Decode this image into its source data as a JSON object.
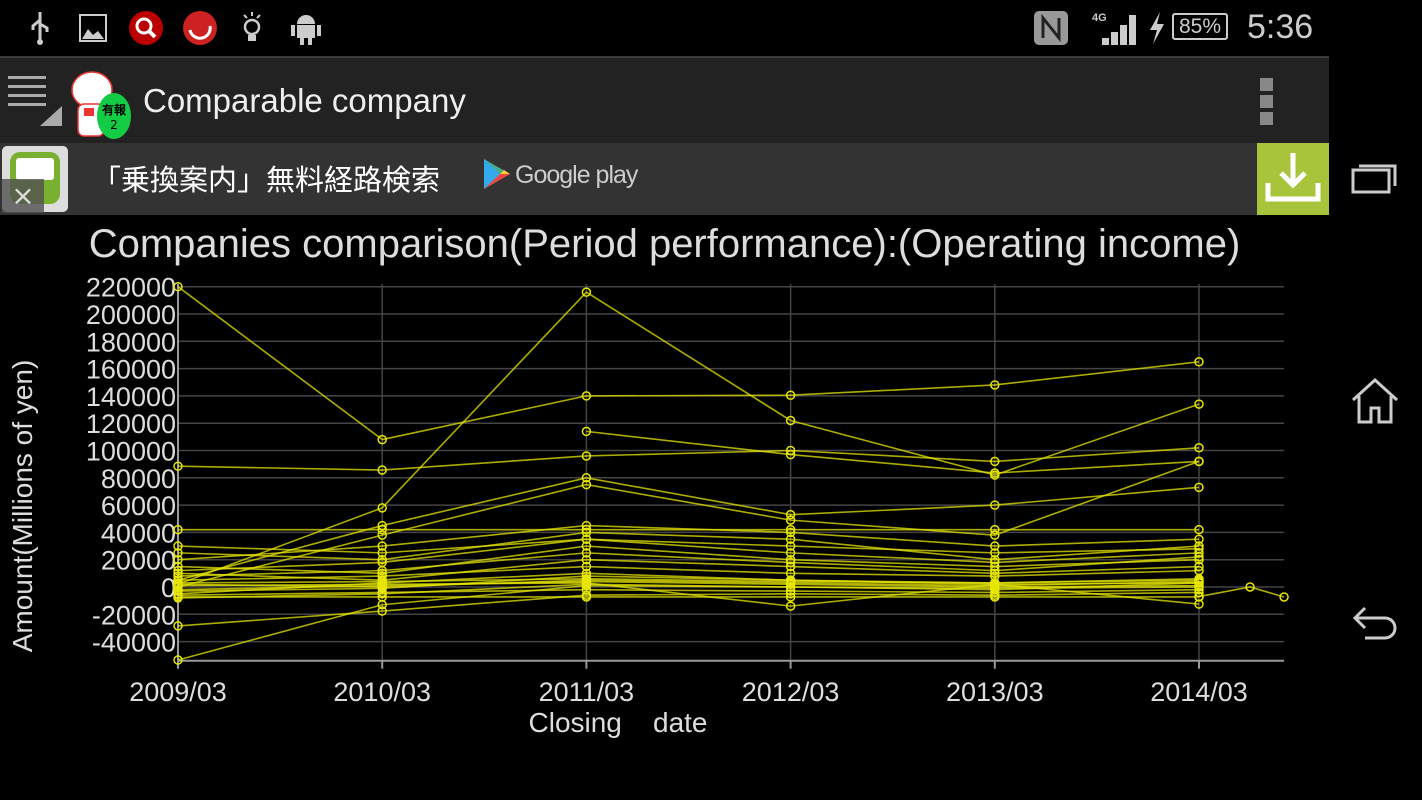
{
  "status_bar": {
    "left_icons": [
      "usb-icon",
      "gallery-icon",
      "search-app-icon",
      "sync-app-icon",
      "lightbulb-icon",
      "android-icon"
    ],
    "right_icons": [
      "nfc-icon",
      "signal-4g-icon",
      "charging-icon",
      "battery-icon"
    ],
    "network": "4G",
    "battery": "85%",
    "time": "5:36"
  },
  "action_bar": {
    "title": "Comparable company",
    "logo_text": "有報 2",
    "menu_icon": "overflow-menu-icon"
  },
  "ad": {
    "text": "「乗換案内」無料経路検索",
    "store": "Google play",
    "download_icon": "download-icon",
    "accent": "#a8c43a"
  },
  "nav": {
    "icons": [
      "recent-apps-icon",
      "home-icon",
      "back-icon"
    ]
  },
  "chart_data": {
    "type": "line",
    "title": "Companies comparison(Period performance):(Operating income)",
    "xlabel": "Closing    date",
    "ylabel": "Amount(Millions of yen)",
    "x": [
      "2009/03",
      "2010/03",
      "2011/03",
      "2012/03",
      "2013/03",
      "2014/03"
    ],
    "xlim": [
      "2009/03",
      "2014/08"
    ],
    "ylim": [
      -54000,
      222000
    ],
    "yticks": [
      220000,
      200000,
      180000,
      160000,
      140000,
      120000,
      100000,
      80000,
      60000,
      40000,
      20000,
      0,
      -20000,
      -40000
    ],
    "grid": true,
    "line_color": "#e6e600",
    "background": "#000000",
    "series": [
      {
        "values": [
          220000,
          108000,
          140000,
          140500,
          148000,
          165000
        ]
      },
      {
        "values": [
          2000,
          58000,
          216000,
          122000,
          82000,
          134000
        ]
      },
      {
        "values": [
          88500,
          85700,
          96000,
          100000,
          92000,
          102000
        ]
      },
      {
        "values": [
          null,
          null,
          114000,
          97000,
          83500,
          92000
        ]
      },
      {
        "values": [
          5000,
          45000,
          80000,
          53000,
          60000,
          73000
        ]
      },
      {
        "values": [
          0,
          38000,
          75000,
          49000,
          38000,
          92000
        ]
      },
      {
        "values": [
          42000,
          42000,
          42000,
          42000,
          42000,
          42000
        ]
      },
      {
        "values": [
          30000,
          25000,
          35000,
          30000,
          25000,
          28000
        ]
      },
      {
        "values": [
          25000,
          20000,
          40000,
          35000,
          20000,
          30000
        ]
      },
      {
        "values": [
          20000,
          30000,
          45000,
          40000,
          30000,
          35000
        ]
      },
      {
        "values": [
          15000,
          10000,
          30000,
          20000,
          15000,
          20000
        ]
      },
      {
        "values": [
          10000,
          5000,
          20000,
          15000,
          10000,
          15000
        ]
      },
      {
        "values": [
          5000,
          8000,
          15000,
          10000,
          8000,
          12000
        ]
      },
      {
        "values": [
          8000,
          12000,
          25000,
          18000,
          12000,
          22000
        ]
      },
      {
        "values": [
          12000,
          18000,
          35000,
          25000,
          18000,
          25000
        ]
      },
      {
        "values": [
          2000,
          0,
          5000,
          3000,
          1000,
          4000
        ]
      },
      {
        "values": [
          -5000,
          3000,
          10000,
          5000,
          3000,
          6000
        ]
      },
      {
        "values": [
          -8000,
          -5000,
          2000,
          0,
          -2000,
          3000
        ]
      },
      {
        "values": [
          -3000,
          -1000,
          8000,
          5000,
          2000,
          -12500
        ]
      },
      {
        "values": [
          1000,
          2000,
          3000,
          -14000,
          2000,
          3000
        ]
      },
      {
        "values": [
          -2000,
          1000,
          4000,
          2000,
          0,
          1000
        ]
      },
      {
        "values": [
          3000,
          4000,
          6000,
          4000,
          3000,
          5000
        ]
      },
      {
        "values": [
          -6000,
          -4000,
          -2000,
          -3000,
          -4000,
          -2000
        ]
      },
      {
        "values": [
          -7300,
          -7300,
          -7300,
          -7300,
          -7300,
          -7300
        ]
      },
      {
        "values": [
          -28500,
          -17600,
          -6000,
          -5000,
          -6000,
          -4000
        ]
      },
      {
        "values": [
          -53500,
          -13000,
          1000,
          0,
          -1000,
          0
        ]
      },
      {
        "x": [
          "2014/03",
          "2014/06",
          "2014/08"
        ],
        "values": [
          -7000,
          0,
          -7300
        ]
      }
    ]
  }
}
